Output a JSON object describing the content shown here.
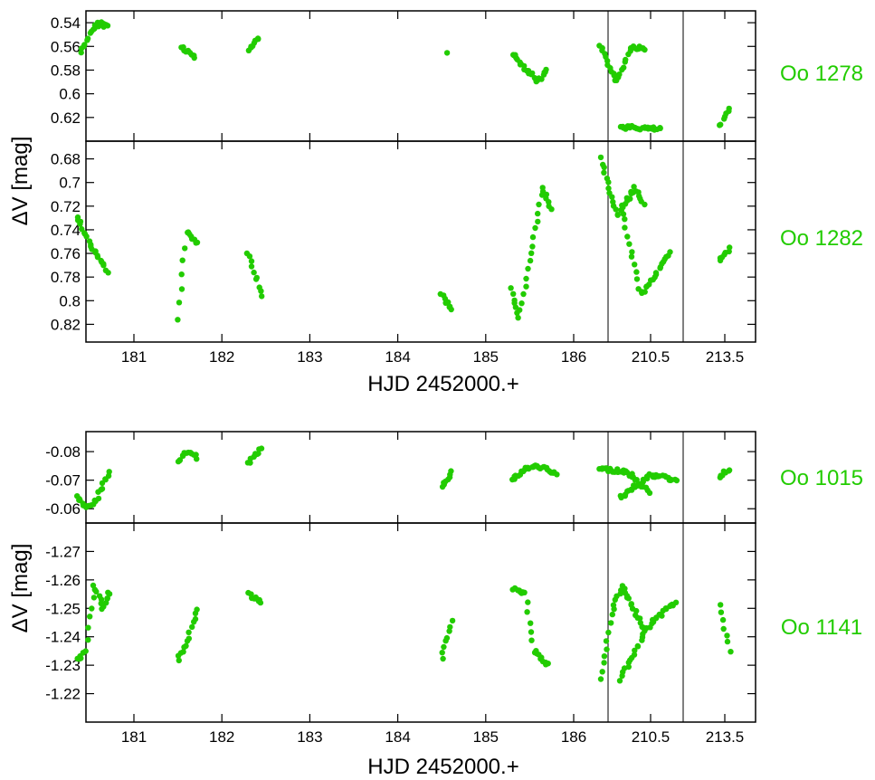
{
  "figure": {
    "x_axis_title": "HJD 2452000.+",
    "y_axis_title": "ΔV [mag]",
    "point_color": "#22cc00",
    "axis_color": "#000000"
  },
  "chart_data": [
    {
      "type": "scatter",
      "group": "top",
      "star": "Oo 1278",
      "y_ticks": [
        0.54,
        0.56,
        0.58,
        0.6,
        0.62
      ],
      "y_tick_labels": [
        "0.54",
        "0.56",
        "0.58",
        "0.6",
        "0.62"
      ],
      "ylim_top": 0.53,
      "ylim_bottom": 0.64,
      "segments": [
        {
          "t": 180.4,
          "y": 0.565
        },
        {
          "t": 180.5,
          "y": 0.55
        },
        {
          "t": 180.6,
          "y": 0.54
        },
        {
          "t": 180.7,
          "y": 0.543
        },
        {
          "t": 181.55,
          "y": 0.56
        },
        {
          "t": 181.7,
          "y": 0.57
        },
        {
          "t": 182.3,
          "y": 0.563
        },
        {
          "t": 182.42,
          "y": 0.553
        },
        {
          "t": 184.55,
          "y": 0.564
        },
        {
          "t": 185.3,
          "y": 0.566
        },
        {
          "t": 185.6,
          "y": 0.59
        },
        {
          "t": 185.7,
          "y": 0.58
        },
        {
          "t": 186.3,
          "y": 0.56
        },
        {
          "t": 186.5,
          "y": 0.59
        },
        {
          "t": 186.65,
          "y": 0.56
        },
        {
          "t": 186.8,
          "y": 0.562
        },
        {
          "t": 210.2,
          "y": 0.628
        },
        {
          "t": 210.6,
          "y": 0.63
        },
        {
          "t": 213.45,
          "y": 0.628
        },
        {
          "t": 213.55,
          "y": 0.612
        }
      ]
    },
    {
      "type": "scatter",
      "group": "top",
      "star": "Oo 1282",
      "y_ticks": [
        0.68,
        0.7,
        0.72,
        0.74,
        0.76,
        0.78,
        0.8,
        0.82
      ],
      "y_tick_labels": [
        "0.68",
        "0.7",
        "0.72",
        "0.74",
        "0.76",
        "0.78",
        "0.8",
        "0.82"
      ],
      "ylim_top": 0.665,
      "ylim_bottom": 0.835,
      "segments": [
        {
          "t": 180.35,
          "y": 0.728
        },
        {
          "t": 180.5,
          "y": 0.752
        },
        {
          "t": 180.7,
          "y": 0.775
        },
        {
          "t": 181.5,
          "y": 0.815
        },
        {
          "t": 181.6,
          "y": 0.742
        },
        {
          "t": 181.72,
          "y": 0.752
        },
        {
          "t": 182.3,
          "y": 0.76
        },
        {
          "t": 182.45,
          "y": 0.795
        },
        {
          "t": 184.5,
          "y": 0.795
        },
        {
          "t": 184.62,
          "y": 0.808
        },
        {
          "t": 185.3,
          "y": 0.79
        },
        {
          "t": 185.38,
          "y": 0.815
        },
        {
          "t": 185.65,
          "y": 0.705
        },
        {
          "t": 185.75,
          "y": 0.722
        },
        {
          "t": 186.3,
          "y": 0.68
        },
        {
          "t": 186.5,
          "y": 0.728
        },
        {
          "t": 186.7,
          "y": 0.705
        },
        {
          "t": 186.8,
          "y": 0.718
        },
        {
          "t": 210.2,
          "y": 0.72
        },
        {
          "t": 210.4,
          "y": 0.795
        },
        {
          "t": 210.7,
          "y": 0.76
        },
        {
          "t": 213.45,
          "y": 0.767
        },
        {
          "t": 213.55,
          "y": 0.755
        }
      ],
      "shows_x_ticks": true
    },
    {
      "type": "scatter",
      "group": "bottom",
      "star": "Oo 1015",
      "y_ticks": [
        -0.08,
        -0.07,
        -0.06
      ],
      "y_tick_labels": [
        "-0.08",
        "-0.07",
        "-0.06"
      ],
      "ylim_top": -0.087,
      "ylim_bottom": -0.055,
      "segments": [
        {
          "t": 180.35,
          "y": -0.064
        },
        {
          "t": 180.45,
          "y": -0.061
        },
        {
          "t": 180.55,
          "y": -0.062
        },
        {
          "t": 180.72,
          "y": -0.073
        },
        {
          "t": 181.5,
          "y": -0.076
        },
        {
          "t": 181.6,
          "y": -0.08
        },
        {
          "t": 181.72,
          "y": -0.078
        },
        {
          "t": 182.3,
          "y": -0.076
        },
        {
          "t": 182.45,
          "y": -0.081
        },
        {
          "t": 184.5,
          "y": -0.068
        },
        {
          "t": 184.62,
          "y": -0.073
        },
        {
          "t": 185.3,
          "y": -0.07
        },
        {
          "t": 185.45,
          "y": -0.074
        },
        {
          "t": 185.6,
          "y": -0.075
        },
        {
          "t": 185.8,
          "y": -0.072
        },
        {
          "t": 186.3,
          "y": -0.074
        },
        {
          "t": 186.6,
          "y": -0.073
        },
        {
          "t": 186.85,
          "y": -0.066
        },
        {
          "t": 210.2,
          "y": -0.064
        },
        {
          "t": 210.5,
          "y": -0.072
        },
        {
          "t": 210.75,
          "y": -0.07
        },
        {
          "t": 213.45,
          "y": -0.071
        },
        {
          "t": 213.55,
          "y": -0.074
        }
      ]
    },
    {
      "type": "scatter",
      "group": "bottom",
      "star": "Oo 1141",
      "y_ticks": [
        -1.27,
        -1.26,
        -1.25,
        -1.24,
        -1.23,
        -1.22
      ],
      "y_tick_labels": [
        "-1.27",
        "-1.26",
        "-1.25",
        "-1.24",
        "-1.23",
        "-1.22"
      ],
      "ylim_top": -1.28,
      "ylim_bottom": -1.21,
      "segments": [
        {
          "t": 180.35,
          "y": -1.232
        },
        {
          "t": 180.45,
          "y": -1.235
        },
        {
          "t": 180.55,
          "y": -1.258
        },
        {
          "t": 180.65,
          "y": -1.25
        },
        {
          "t": 180.72,
          "y": -1.256
        },
        {
          "t": 181.5,
          "y": -1.232
        },
        {
          "t": 181.6,
          "y": -1.238
        },
        {
          "t": 181.72,
          "y": -1.25
        },
        {
          "t": 182.3,
          "y": -1.255
        },
        {
          "t": 182.45,
          "y": -1.252
        },
        {
          "t": 184.5,
          "y": -1.232
        },
        {
          "t": 184.62,
          "y": -1.246
        },
        {
          "t": 185.3,
          "y": -1.257
        },
        {
          "t": 185.45,
          "y": -1.255
        },
        {
          "t": 185.55,
          "y": -1.235
        },
        {
          "t": 185.7,
          "y": -1.23
        },
        {
          "t": 186.3,
          "y": -1.225
        },
        {
          "t": 186.45,
          "y": -1.25
        },
        {
          "t": 186.55,
          "y": -1.258
        },
        {
          "t": 186.8,
          "y": -1.243
        },
        {
          "t": 210.2,
          "y": -1.225
        },
        {
          "t": 210.5,
          "y": -1.245
        },
        {
          "t": 210.75,
          "y": -1.252
        },
        {
          "t": 213.45,
          "y": -1.251
        },
        {
          "t": 213.55,
          "y": -1.235
        }
      ],
      "shows_x_ticks": true
    }
  ],
  "x_tick_labels": [
    "181",
    "182",
    "183",
    "184",
    "185",
    "186",
    "210.5",
    "213.5"
  ],
  "x_ticks": [
    181,
    182,
    183,
    184,
    185,
    186,
    210.5,
    213.5
  ]
}
